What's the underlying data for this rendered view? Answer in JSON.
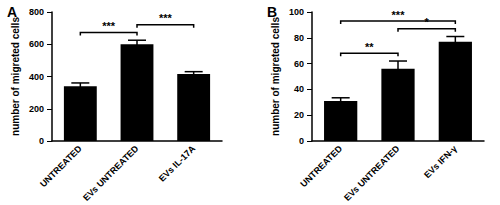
{
  "chart_data": [
    {
      "type": "bar",
      "title": "A",
      "categories": [
        "UNTREATED",
        "EVs UNTREATED",
        "EVs IL-17A"
      ],
      "values": [
        340,
        600,
        415
      ],
      "errors": [
        20,
        25,
        15
      ],
      "color": "#000000",
      "y_label": "number of migreted cells",
      "ylim": [
        0,
        800
      ],
      "yticks": [
        0,
        200,
        400,
        600,
        800
      ],
      "grid": false,
      "annotations": [
        {
          "text": "***",
          "from": 0,
          "to": 1
        },
        {
          "text": "***",
          "from": 1,
          "to": 2
        }
      ]
    },
    {
      "type": "bar",
      "title": "B",
      "categories": [
        "UNTREATED",
        "EVs UNTREATED",
        "EVs IFN-γ"
      ],
      "values": [
        31,
        56,
        77
      ],
      "errors": [
        2.5,
        6,
        4
      ],
      "color": "#000000",
      "y_label": "number of migreted cells",
      "ylim": [
        0,
        100
      ],
      "yticks": [
        0,
        20,
        40,
        60,
        80,
        100
      ],
      "grid": false,
      "annotations": [
        {
          "text": "**",
          "from": 0,
          "to": 1
        },
        {
          "text": "*",
          "from": 1,
          "to": 2
        },
        {
          "text": "***",
          "from": 0,
          "to": 2
        }
      ]
    }
  ]
}
